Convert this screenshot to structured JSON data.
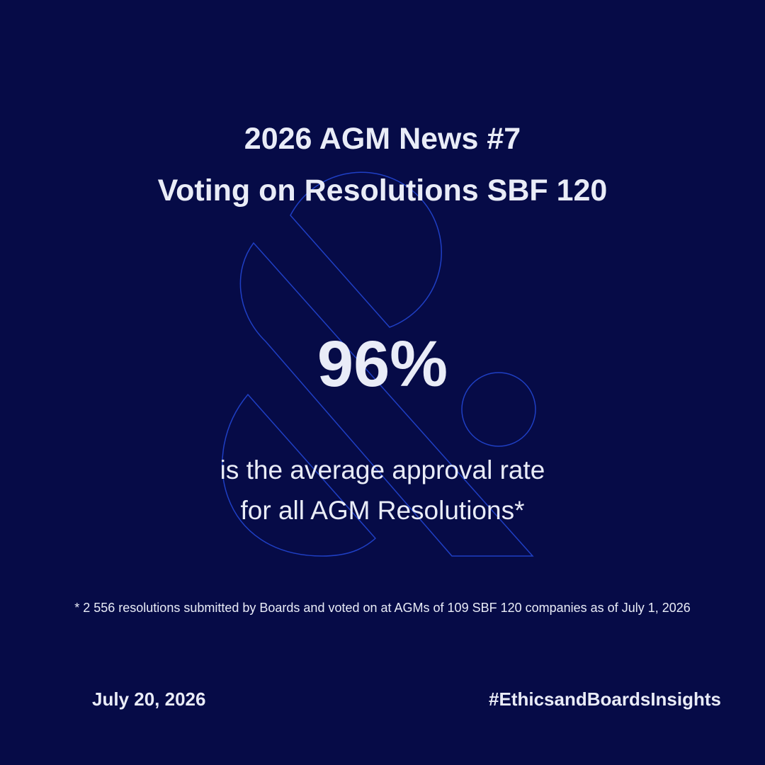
{
  "header": {
    "title_lines": [
      "2026 AGM News #7",
      "Voting on Resolutions SBF 120"
    ]
  },
  "highlight": {
    "value": "96%",
    "caption_lines": [
      "is the average approval rate",
      "for all AGM Resolutions*"
    ]
  },
  "footnote": "* 2 556 resolutions submitted by Boards and voted on at AGMs of 109 SBF 120 companies as of July 1, 2026",
  "footer": {
    "date": "July 20, 2026",
    "hashtag": "#EthicsandBoardsInsights"
  }
}
